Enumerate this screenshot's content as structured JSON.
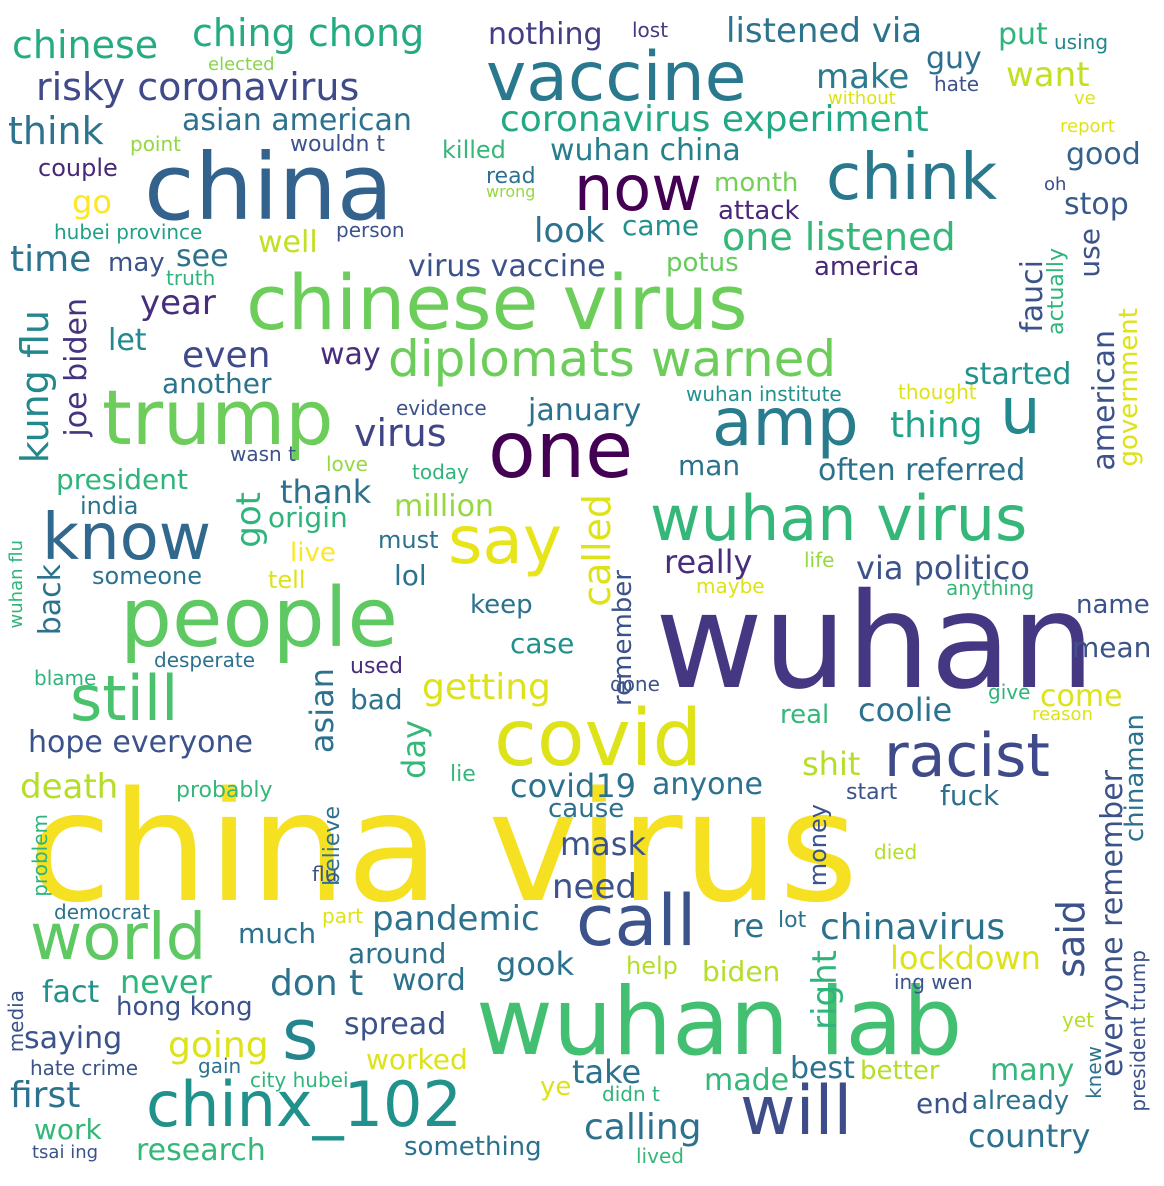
{
  "words": [
    {
      "text": "china virus",
      "color": "#f5e022"
    },
    {
      "text": "wuhan",
      "color": "#453781"
    },
    {
      "text": "chinese virus",
      "color": "#6ccd5a"
    },
    {
      "text": "wuhan lab",
      "color": "#43bf71"
    },
    {
      "text": "china",
      "color": "#33638d"
    },
    {
      "text": "people",
      "color": "#5ec962"
    },
    {
      "text": "vaccine",
      "color": "#2a788e"
    },
    {
      "text": "covid",
      "color": "#dde318"
    },
    {
      "text": "trump",
      "color": "#6ccd5a"
    },
    {
      "text": "one",
      "color": "#440154"
    },
    {
      "text": "wuhan virus",
      "color": "#35b779"
    },
    {
      "text": "diplomats warned",
      "color": "#6ccd5a"
    },
    {
      "text": "racist",
      "color": "#3e4a89"
    },
    {
      "text": "chinx_102",
      "color": "#21918c"
    },
    {
      "text": "will",
      "color": "#3e4c8a"
    },
    {
      "text": "know",
      "color": "#31688e"
    },
    {
      "text": "say",
      "color": "#e7e419"
    },
    {
      "text": "world",
      "color": "#5ec962"
    },
    {
      "text": "call",
      "color": "#3b528b"
    },
    {
      "text": "now",
      "color": "#440154"
    },
    {
      "text": "chink",
      "color": "#2a788e"
    },
    {
      "text": "amp",
      "color": "#287c8e"
    },
    {
      "text": "still",
      "color": "#4ac16d"
    },
    {
      "text": "s",
      "color": "#25858e"
    },
    {
      "text": "u",
      "color": "#23898e"
    },
    {
      "text": "chinese",
      "color": "#25ab82"
    },
    {
      "text": "ching chong",
      "color": "#25ab82"
    },
    {
      "text": "risky coronavirus",
      "color": "#3e4a89"
    },
    {
      "text": "nothing",
      "color": "#433e85"
    },
    {
      "text": "lost",
      "color": "#443983"
    },
    {
      "text": "listened via",
      "color": "#2c738e"
    },
    {
      "text": "put",
      "color": "#2fb47c"
    },
    {
      "text": "using",
      "color": "#23888e"
    },
    {
      "text": "guy",
      "color": "#2e6e8e"
    },
    {
      "text": "hate",
      "color": "#3b528b"
    },
    {
      "text": "want",
      "color": "#c2df23"
    },
    {
      "text": "elected",
      "color": "#86d549"
    },
    {
      "text": "make",
      "color": "#297b8e"
    },
    {
      "text": "without",
      "color": "#dde318"
    },
    {
      "text": "ve",
      "color": "#dde318"
    },
    {
      "text": "think",
      "color": "#2c738e"
    },
    {
      "text": "asian american",
      "color": "#2c728e"
    },
    {
      "text": "coronavirus experiment",
      "color": "#22a884"
    },
    {
      "text": "report",
      "color": "#dde318"
    },
    {
      "text": "point",
      "color": "#94d840"
    },
    {
      "text": "wouldn t",
      "color": "#3b528b"
    },
    {
      "text": "killed",
      "color": "#35b779"
    },
    {
      "text": "wuhan china",
      "color": "#277f8e"
    },
    {
      "text": "good",
      "color": "#33638d"
    },
    {
      "text": "couple",
      "color": "#482878"
    },
    {
      "text": "read",
      "color": "#2c728e"
    },
    {
      "text": "wrong",
      "color": "#95d840"
    },
    {
      "text": "month",
      "color": "#73d056"
    },
    {
      "text": "oh",
      "color": "#3e4a89"
    },
    {
      "text": "go",
      "color": "#fde725"
    },
    {
      "text": "attack",
      "color": "#482878"
    },
    {
      "text": "stop",
      "color": "#38598c"
    },
    {
      "text": "hubei province",
      "color": "#1fa088"
    },
    {
      "text": "person",
      "color": "#3b528b"
    },
    {
      "text": "look",
      "color": "#2c728e"
    },
    {
      "text": "came",
      "color": "#21918c"
    },
    {
      "text": "one listened",
      "color": "#35b779"
    },
    {
      "text": "well",
      "color": "#c2df23"
    },
    {
      "text": "time",
      "color": "#2c738e"
    },
    {
      "text": "may",
      "color": "#3b528b"
    },
    {
      "text": "see",
      "color": "#2c728e"
    },
    {
      "text": "truth",
      "color": "#2fb47c"
    },
    {
      "text": "virus vaccine",
      "color": "#3b528b"
    },
    {
      "text": "potus",
      "color": "#67cc5c"
    },
    {
      "text": "america",
      "color": "#482878"
    },
    {
      "text": "year",
      "color": "#472d7b"
    },
    {
      "text": "kung flu",
      "color": "#23888e"
    },
    {
      "text": "let",
      "color": "#23888e"
    },
    {
      "text": "joe biden",
      "color": "#46337f"
    },
    {
      "text": "even",
      "color": "#3e4a89"
    },
    {
      "text": "way",
      "color": "#472d7b"
    },
    {
      "text": "another",
      "color": "#2c738e"
    },
    {
      "text": "started",
      "color": "#21918c"
    },
    {
      "text": "wuhan institute",
      "color": "#21918c"
    },
    {
      "text": "thought",
      "color": "#dde318"
    },
    {
      "text": "evidence",
      "color": "#3b528b"
    },
    {
      "text": "january",
      "color": "#2c728e"
    },
    {
      "text": "virus",
      "color": "#404588"
    },
    {
      "text": "thing",
      "color": "#1fa088"
    },
    {
      "text": "fauci",
      "color": "#3b528b"
    },
    {
      "text": "actually",
      "color": "#2fb47c"
    },
    {
      "text": "use",
      "color": "#3b528b"
    },
    {
      "text": "government",
      "color": "#dde318"
    },
    {
      "text": "american",
      "color": "#3b528b"
    },
    {
      "text": "wasn t",
      "color": "#3b528b"
    },
    {
      "text": "love",
      "color": "#95d840"
    },
    {
      "text": "today",
      "color": "#2fb47c"
    },
    {
      "text": "man",
      "color": "#2c728e"
    },
    {
      "text": "often referred",
      "color": "#2c728e"
    },
    {
      "text": "president",
      "color": "#2fb47c"
    },
    {
      "text": "thank",
      "color": "#2c728e"
    },
    {
      "text": "india",
      "color": "#2c728e"
    },
    {
      "text": "origin",
      "color": "#2fb47c"
    },
    {
      "text": "million",
      "color": "#95d840"
    },
    {
      "text": "got",
      "color": "#2fb47c"
    },
    {
      "text": "called",
      "color": "#dde318"
    },
    {
      "text": "live",
      "color": "#fde725"
    },
    {
      "text": "must",
      "color": "#2c728e"
    },
    {
      "text": "really",
      "color": "#472d7b"
    },
    {
      "text": "life",
      "color": "#95d840"
    },
    {
      "text": "via politico",
      "color": "#3b528b"
    },
    {
      "text": "wuhan flu",
      "color": "#2fb47c"
    },
    {
      "text": "back",
      "color": "#2c728e"
    },
    {
      "text": "someone",
      "color": "#2c728e"
    },
    {
      "text": "tell",
      "color": "#dde318"
    },
    {
      "text": "lol",
      "color": "#2c728e"
    },
    {
      "text": "maybe",
      "color": "#dde318"
    },
    {
      "text": "anything",
      "color": "#35b779"
    },
    {
      "text": "keep",
      "color": "#2c728e"
    },
    {
      "text": "name",
      "color": "#3b528b"
    },
    {
      "text": "remember",
      "color": "#3b528b"
    },
    {
      "text": "case",
      "color": "#21918c"
    },
    {
      "text": "mean",
      "color": "#3b528b"
    },
    {
      "text": "desperate",
      "color": "#2c728e"
    },
    {
      "text": "blame",
      "color": "#2fb47c"
    },
    {
      "text": "used",
      "color": "#472d7b"
    },
    {
      "text": "done",
      "color": "#3b528b"
    },
    {
      "text": "getting",
      "color": "#dde318"
    },
    {
      "text": "give",
      "color": "#2fb47c"
    },
    {
      "text": "bad",
      "color": "#2c728e"
    },
    {
      "text": "come",
      "color": "#dde318"
    },
    {
      "text": "reason",
      "color": "#dde318"
    },
    {
      "text": "asian",
      "color": "#2c728e"
    },
    {
      "text": "real",
      "color": "#35b779"
    },
    {
      "text": "coolie",
      "color": "#2c728e"
    },
    {
      "text": "hope everyone",
      "color": "#3b528b"
    },
    {
      "text": "day",
      "color": "#35b779"
    },
    {
      "text": "chinaman",
      "color": "#2c728e"
    },
    {
      "text": "shit",
      "color": "#b5de2b"
    },
    {
      "text": "death",
      "color": "#b5de2b"
    },
    {
      "text": "lie",
      "color": "#35b779"
    },
    {
      "text": "covid19",
      "color": "#2c728e"
    },
    {
      "text": "anyone",
      "color": "#2c728e"
    },
    {
      "text": "probably",
      "color": "#35b779"
    },
    {
      "text": "cause",
      "color": "#2c728e"
    },
    {
      "text": "start",
      "color": "#3b528b"
    },
    {
      "text": "fuck",
      "color": "#2c728e"
    },
    {
      "text": "believe",
      "color": "#2c728e"
    },
    {
      "text": "money",
      "color": "#3b528b"
    },
    {
      "text": "everyone remember",
      "color": "#3b528b"
    },
    {
      "text": "mask",
      "color": "#3b528b"
    },
    {
      "text": "problem",
      "color": "#2fb47c"
    },
    {
      "text": "flu",
      "color": "#3b528b"
    },
    {
      "text": "died",
      "color": "#b5de2b"
    },
    {
      "text": "need",
      "color": "#3b528b"
    },
    {
      "text": "democrat",
      "color": "#2c728e"
    },
    {
      "text": "part",
      "color": "#dde318"
    },
    {
      "text": "pandemic",
      "color": "#2c728e"
    },
    {
      "text": "re",
      "color": "#2c728e"
    },
    {
      "text": "lot",
      "color": "#2c728e"
    },
    {
      "text": "chinavirus",
      "color": "#2c728e"
    },
    {
      "text": "said",
      "color": "#3b528b"
    },
    {
      "text": "much",
      "color": "#2c728e"
    },
    {
      "text": "around",
      "color": "#2c728e"
    },
    {
      "text": "lockdown",
      "color": "#dde318"
    },
    {
      "text": "don t",
      "color": "#2c728e"
    },
    {
      "text": "word",
      "color": "#2c728e"
    },
    {
      "text": "gook",
      "color": "#2c728e"
    },
    {
      "text": "help",
      "color": "#b5de2b"
    },
    {
      "text": "biden",
      "color": "#b5de2b"
    },
    {
      "text": "right",
      "color": "#2fb47c"
    },
    {
      "text": "ing wen",
      "color": "#3b528b"
    },
    {
      "text": "never",
      "color": "#2fb47c"
    },
    {
      "text": "fact",
      "color": "#21918c"
    },
    {
      "text": "hong kong",
      "color": "#3b528b"
    },
    {
      "text": "media",
      "color": "#3b528b"
    },
    {
      "text": "saying",
      "color": "#3b528b"
    },
    {
      "text": "spread",
      "color": "#3b528b"
    },
    {
      "text": "going",
      "color": "#dde318"
    },
    {
      "text": "worked",
      "color": "#dde318"
    },
    {
      "text": "yet",
      "color": "#b5de2b"
    },
    {
      "text": "president trump",
      "color": "#3b528b"
    },
    {
      "text": "knew",
      "color": "#2c728e"
    },
    {
      "text": "hate crime",
      "color": "#3b528b"
    },
    {
      "text": "gain",
      "color": "#2c728e"
    },
    {
      "text": "city hubei",
      "color": "#2fb47c"
    },
    {
      "text": "take",
      "color": "#2c728e"
    },
    {
      "text": "made",
      "color": "#35b779"
    },
    {
      "text": "best",
      "color": "#2c728e"
    },
    {
      "text": "better",
      "color": "#b5de2b"
    },
    {
      "text": "many",
      "color": "#35b779"
    },
    {
      "text": "first",
      "color": "#2c728e"
    },
    {
      "text": "ye",
      "color": "#dde318"
    },
    {
      "text": "didn t",
      "color": "#2fb47c"
    },
    {
      "text": "end",
      "color": "#3b528b"
    },
    {
      "text": "already",
      "color": "#2c728e"
    },
    {
      "text": "work",
      "color": "#35b779"
    },
    {
      "text": "calling",
      "color": "#2c728e"
    },
    {
      "text": "country",
      "color": "#2c728e"
    },
    {
      "text": "research",
      "color": "#35b779"
    },
    {
      "text": "something",
      "color": "#2c728e"
    },
    {
      "text": "tsai ing",
      "color": "#3b528b"
    },
    {
      "text": "lived",
      "color": "#35b779"
    }
  ]
}
